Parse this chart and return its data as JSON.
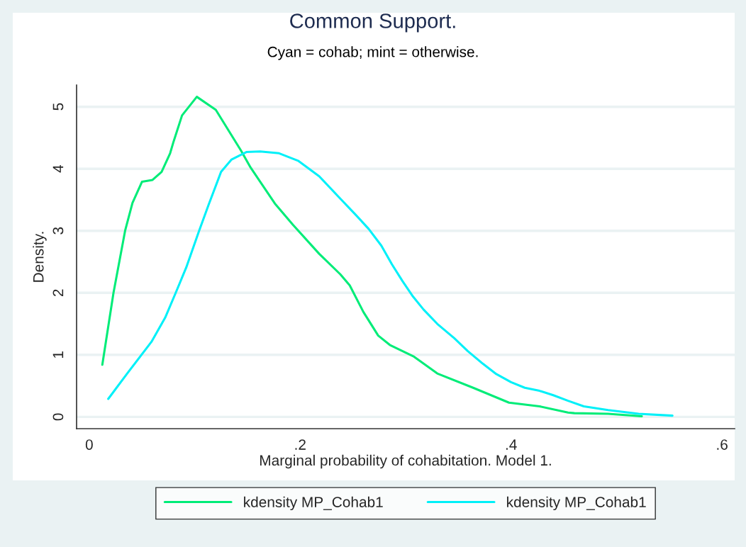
{
  "chart_data": {
    "type": "line",
    "title": "Common Support.",
    "subtitle": "Cyan = cohab; mint = otherwise.",
    "xlabel": "Marginal probability of cohabitation. Model 1.",
    "ylabel": "Density.",
    "xlim": [
      -0.012,
      0.612
    ],
    "ylim": [
      -0.19,
      5.35
    ],
    "xticks": [
      {
        "value": 0,
        "label": "0"
      },
      {
        "value": 0.2,
        "label": ".2"
      },
      {
        "value": 0.4,
        "label": ".4"
      },
      {
        "value": 0.6,
        "label": ".6"
      }
    ],
    "yticks": [
      0,
      1,
      2,
      3,
      4,
      5
    ],
    "grid": "y",
    "legend": "bottom",
    "marker": "none",
    "line_style": "solid",
    "series": [
      {
        "name": "kdensity MP_Cohab1",
        "color": "#00ec78",
        "x": [
          0.0124,
          0.023,
          0.034,
          0.041,
          0.05,
          0.06,
          0.0686,
          0.0767,
          0.08,
          0.088,
          0.102,
          0.12,
          0.144,
          0.153,
          0.176,
          0.193,
          0.218,
          0.238,
          0.247,
          0.26,
          0.274,
          0.285,
          0.308,
          0.33,
          0.364,
          0.398,
          0.427,
          0.454,
          0.46,
          0.492,
          0.524
        ],
        "values": [
          0.84,
          2.0,
          3.0,
          3.45,
          3.79,
          3.82,
          3.95,
          4.25,
          4.44,
          4.86,
          5.16,
          4.95,
          4.29,
          4.02,
          3.44,
          3.1,
          2.63,
          2.3,
          2.12,
          1.69,
          1.31,
          1.16,
          0.97,
          0.7,
          0.47,
          0.23,
          0.17,
          0.07,
          0.06,
          0.05,
          0.01
        ]
      },
      {
        "name": "kdensity MP_Cohab1",
        "color": "#00f0f8",
        "x": [
          0.018,
          0.036,
          0.059,
          0.072,
          0.082,
          0.092,
          0.104,
          0.113,
          0.125,
          0.135,
          0.149,
          0.162,
          0.18,
          0.198,
          0.218,
          0.238,
          0.252,
          0.265,
          0.277,
          0.287,
          0.297,
          0.307,
          0.317,
          0.33,
          0.346,
          0.359,
          0.373,
          0.386,
          0.4,
          0.413,
          0.427,
          0.44,
          0.454,
          0.469,
          0.492,
          0.521,
          0.553
        ],
        "values": [
          0.29,
          0.7,
          1.21,
          1.6,
          2.0,
          2.41,
          2.99,
          3.41,
          3.95,
          4.15,
          4.27,
          4.28,
          4.25,
          4.13,
          3.88,
          3.52,
          3.27,
          3.03,
          2.76,
          2.46,
          2.19,
          1.94,
          1.73,
          1.5,
          1.27,
          1.06,
          0.86,
          0.69,
          0.56,
          0.47,
          0.42,
          0.35,
          0.26,
          0.17,
          0.11,
          0.05,
          0.02
        ]
      }
    ]
  }
}
